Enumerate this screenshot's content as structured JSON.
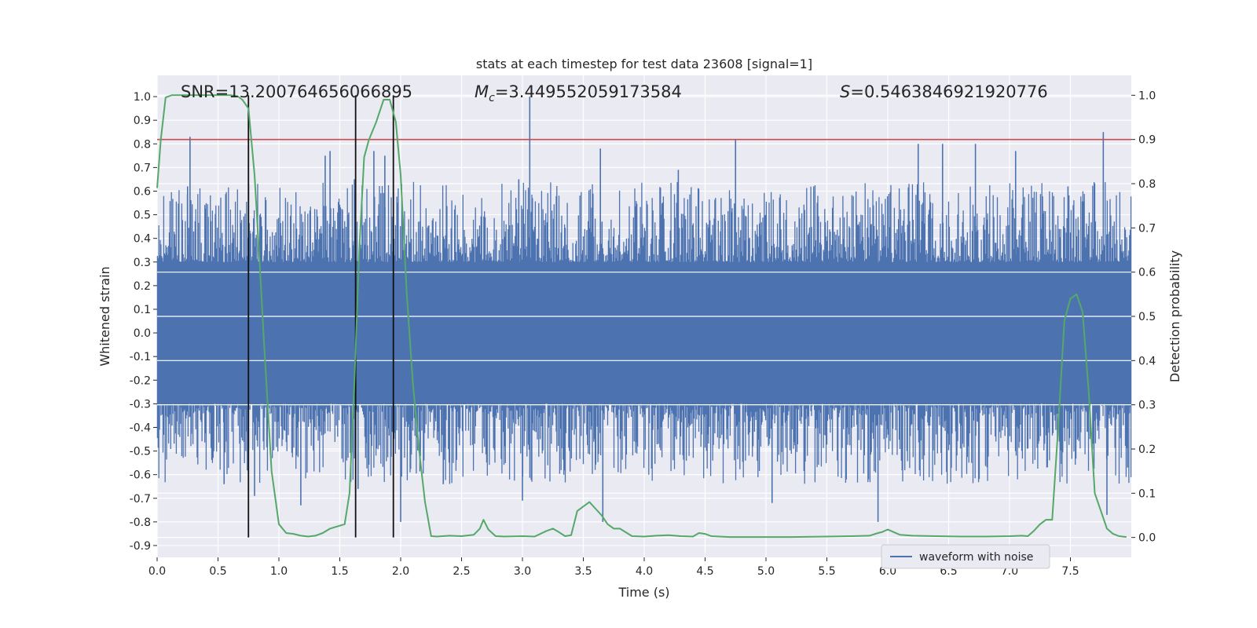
{
  "chart_data": {
    "type": "line",
    "title": "stats at each timestep for test data 23608 [signal=1]",
    "xlabel": "Time (s)",
    "ylabel_left": "Whitened strain",
    "ylabel_right": "Detection probability",
    "xlim": [
      0.0,
      8.0
    ],
    "ylim_left": [
      -0.95,
      1.09
    ],
    "ylim_right": [
      -0.045,
      1.045
    ],
    "x_ticks": [
      "0.0",
      "0.5",
      "1.0",
      "1.5",
      "2.0",
      "2.5",
      "3.0",
      "3.5",
      "4.0",
      "4.5",
      "5.0",
      "5.5",
      "6.0",
      "6.5",
      "7.0",
      "7.5"
    ],
    "y_ticks_left": [
      "1.0",
      "0.9",
      "0.8",
      "0.7",
      "0.6",
      "0.5",
      "0.4",
      "0.3",
      "0.2",
      "0.1",
      "0.0",
      "-0.1",
      "-0.2",
      "-0.3",
      "-0.4",
      "-0.5",
      "-0.6",
      "-0.7",
      "-0.8",
      "-0.9"
    ],
    "y_ticks_right": [
      "1.0",
      "0.9",
      "0.8",
      "0.7",
      "0.6",
      "0.5",
      "0.4",
      "0.3",
      "0.2",
      "0.1",
      "0.0"
    ],
    "grid": true,
    "legend": {
      "placement": "lower-right",
      "entries": [
        "waveform with noise"
      ]
    },
    "annotations": {
      "snr": "SNR=13.200764656066895",
      "mc_symbol": "M",
      "mc_sub": "c",
      "mc_value": "=3.449552059173584",
      "s_symbol": "S",
      "s_value": "=0.5463846921920776"
    },
    "threshold": {
      "value_right": 0.9,
      "color": "#c44e52"
    },
    "vertical_lines": [
      0.75,
      1.63,
      1.94
    ],
    "series": [
      {
        "name": "waveform with noise",
        "axis": "left",
        "color": "#4c72b0",
        "kind": "noise",
        "core_amplitude": 0.3,
        "typical_peak": 0.5,
        "spikes": [
          {
            "x": 0.27,
            "y": 0.83
          },
          {
            "x": 0.25,
            "y": 0.62
          },
          {
            "x": 1.38,
            "y": 0.75
          },
          {
            "x": 1.42,
            "y": 0.77
          },
          {
            "x": 1.62,
            "y": 0.65
          },
          {
            "x": 1.65,
            "y": -0.66
          },
          {
            "x": 1.78,
            "y": 0.77
          },
          {
            "x": 1.87,
            "y": 0.75
          },
          {
            "x": 2.0,
            "y": -0.8
          },
          {
            "x": 3.06,
            "y": 1.0
          },
          {
            "x": 2.97,
            "y": 0.65
          },
          {
            "x": 3.0,
            "y": -0.71
          },
          {
            "x": 3.66,
            "y": -0.8
          },
          {
            "x": 3.64,
            "y": 0.78
          },
          {
            "x": 4.28,
            "y": 0.69
          },
          {
            "x": 4.75,
            "y": 0.82
          },
          {
            "x": 5.05,
            "y": -0.72
          },
          {
            "x": 5.92,
            "y": -0.8
          },
          {
            "x": 6.25,
            "y": 0.8
          },
          {
            "x": 6.45,
            "y": 0.8
          },
          {
            "x": 6.72,
            "y": 0.8
          },
          {
            "x": 7.05,
            "y": 0.77
          },
          {
            "x": 7.48,
            "y": 0.62
          },
          {
            "x": 7.77,
            "y": 0.85
          },
          {
            "x": 7.8,
            "y": -0.77
          },
          {
            "x": 7.97,
            "y": -0.57
          },
          {
            "x": 0.55,
            "y": -0.64
          },
          {
            "x": 0.8,
            "y": -0.69
          },
          {
            "x": 1.18,
            "y": -0.73
          },
          {
            "x": 2.35,
            "y": -0.64
          }
        ]
      },
      {
        "name": "",
        "axis": "right",
        "color": "#55a868",
        "x": [
          0.0,
          0.03,
          0.07,
          0.12,
          0.2,
          0.3,
          0.4,
          0.5,
          0.6,
          0.66,
          0.7,
          0.75,
          0.8,
          0.84,
          0.88,
          0.94,
          1.0,
          1.06,
          1.12,
          1.18,
          1.24,
          1.3,
          1.36,
          1.42,
          1.48,
          1.54,
          1.58,
          1.62,
          1.66,
          1.7,
          1.74,
          1.8,
          1.86,
          1.91,
          1.96,
          2.0,
          2.05,
          2.1,
          2.15,
          2.2,
          2.25,
          2.3,
          2.4,
          2.5,
          2.6,
          2.65,
          2.68,
          2.72,
          2.78,
          2.85,
          3.0,
          3.1,
          3.2,
          3.25,
          3.3,
          3.35,
          3.4,
          3.45,
          3.5,
          3.55,
          3.6,
          3.65,
          3.7,
          3.75,
          3.8,
          3.9,
          4.0,
          4.1,
          4.2,
          4.3,
          4.4,
          4.45,
          4.5,
          4.55,
          4.7,
          4.9,
          5.2,
          5.5,
          5.7,
          5.85,
          5.92,
          5.95,
          6.0,
          6.05,
          6.1,
          6.2,
          6.4,
          6.6,
          6.8,
          7.0,
          7.1,
          7.15,
          7.2,
          7.25,
          7.3,
          7.35,
          7.4,
          7.45,
          7.5,
          7.55,
          7.6,
          7.65,
          7.7,
          7.75,
          7.8,
          7.85,
          7.9,
          7.96
        ],
        "y": [
          0.79,
          0.9,
          0.995,
          1.0,
          1.0,
          1.0,
          1.0,
          1.0,
          1.0,
          0.998,
          0.99,
          0.97,
          0.82,
          0.63,
          0.43,
          0.15,
          0.03,
          0.01,
          0.008,
          0.004,
          0.002,
          0.004,
          0.01,
          0.02,
          0.025,
          0.03,
          0.1,
          0.35,
          0.65,
          0.86,
          0.9,
          0.94,
          0.99,
          0.99,
          0.94,
          0.82,
          0.55,
          0.35,
          0.2,
          0.08,
          0.003,
          0.002,
          0.004,
          0.003,
          0.006,
          0.02,
          0.04,
          0.018,
          0.003,
          0.002,
          0.003,
          0.002,
          0.015,
          0.02,
          0.012,
          0.003,
          0.005,
          0.06,
          0.07,
          0.08,
          0.065,
          0.05,
          0.03,
          0.02,
          0.02,
          0.003,
          0.002,
          0.004,
          0.005,
          0.003,
          0.002,
          0.01,
          0.008,
          0.003,
          0.001,
          0.001,
          0.001,
          0.002,
          0.003,
          0.004,
          0.01,
          0.012,
          0.018,
          0.012,
          0.006,
          0.004,
          0.003,
          0.002,
          0.002,
          0.003,
          0.004,
          0.003,
          0.015,
          0.03,
          0.04,
          0.04,
          0.25,
          0.49,
          0.54,
          0.55,
          0.51,
          0.33,
          0.1,
          0.06,
          0.02,
          0.008,
          0.003,
          0.001
        ]
      }
    ]
  }
}
